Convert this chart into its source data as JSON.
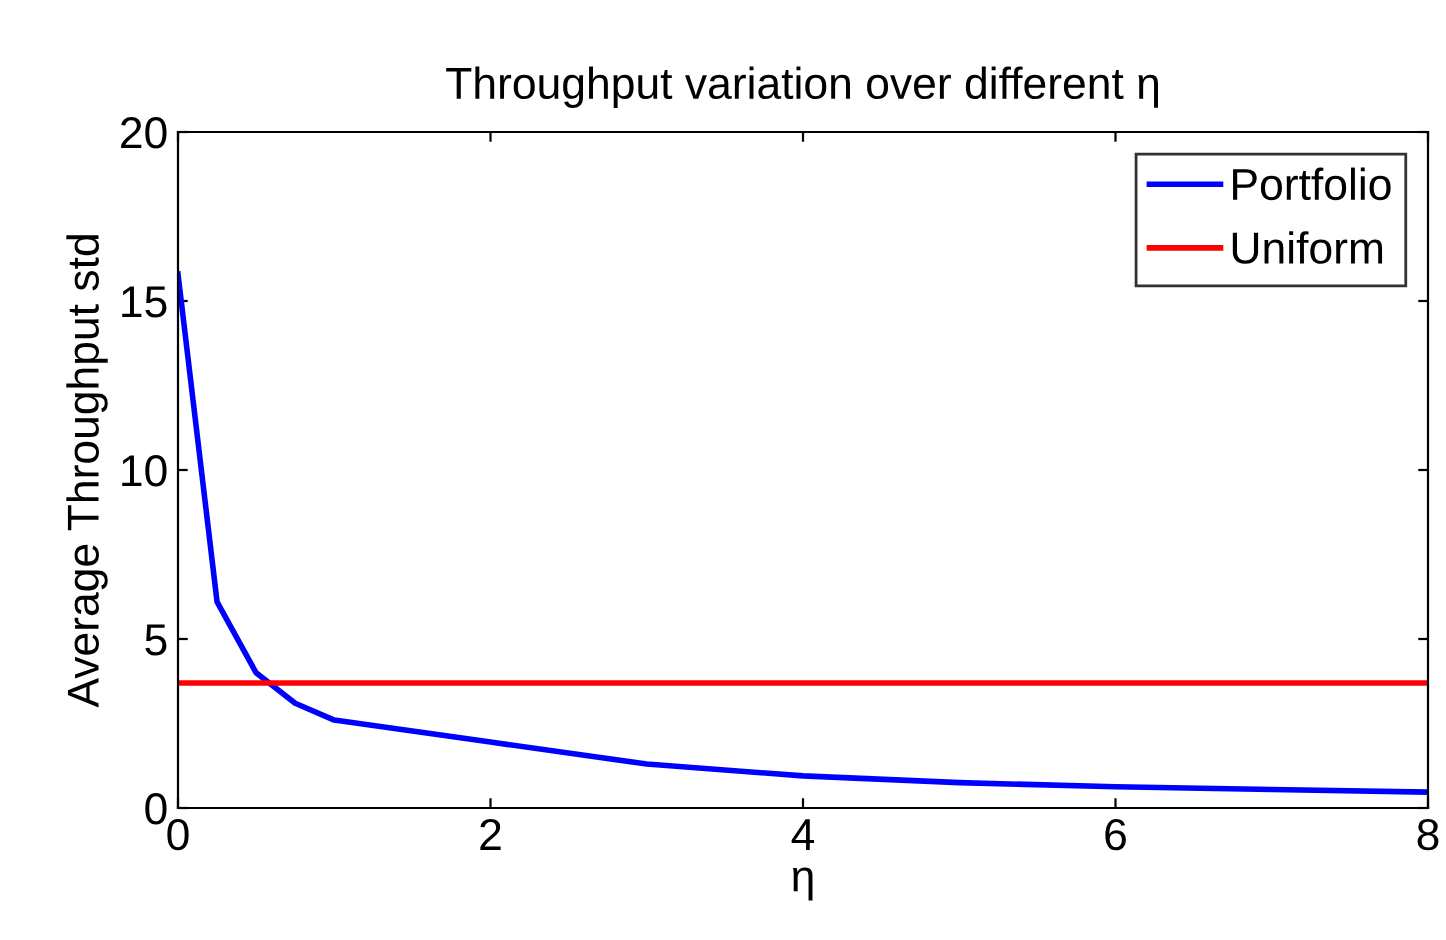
{
  "chart_data": {
    "type": "line",
    "title": "Throughput variation over different η",
    "xlabel": "η",
    "ylabel": "Average Throughput std",
    "xlim": [
      0,
      8
    ],
    "ylim": [
      0,
      20
    ],
    "xticks": [
      0,
      2,
      4,
      6,
      8
    ],
    "yticks": [
      0,
      5,
      10,
      15,
      20
    ],
    "grid": false,
    "legend": "top right",
    "series": [
      {
        "name": "Portfolio",
        "color": "#0000ff",
        "x": [
          0,
          0.25,
          0.5,
          0.75,
          1,
          2,
          3,
          4,
          5,
          6,
          7,
          8
        ],
        "values": [
          15.8,
          6.1,
          4.0,
          3.1,
          2.6,
          1.95,
          1.3,
          0.95,
          0.75,
          0.63,
          0.55,
          0.47
        ]
      },
      {
        "name": "Uniform",
        "color": "#ff0000",
        "x": [
          0,
          8
        ],
        "values": [
          3.7,
          3.7
        ]
      }
    ]
  }
}
